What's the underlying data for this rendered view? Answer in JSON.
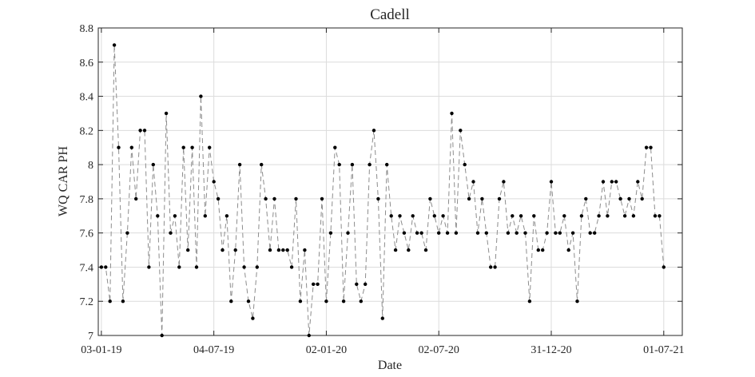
{
  "chart_data": {
    "type": "line",
    "title": "Cadell",
    "xlabel": "Date",
    "ylabel": "WQ CAR PH",
    "ylim": [
      7,
      8.8
    ],
    "xlim": [
      "2018-12-29",
      "2021-07-31"
    ],
    "yticks": [
      7,
      7.2,
      7.4,
      7.6,
      7.8,
      8,
      8.2,
      8.4,
      8.6,
      8.8
    ],
    "ytick_labels": [
      "7",
      "7.2",
      "7.4",
      "7.6",
      "7.8",
      "8",
      "8.2",
      "8.4",
      "8.6",
      "8.8"
    ],
    "xticks": [
      "2019-01-03",
      "2019-07-04",
      "2020-01-02",
      "2020-07-02",
      "2020-12-31",
      "2021-07-01"
    ],
    "xtick_labels": [
      "03-01-19",
      "04-07-19",
      "02-01-20",
      "02-07-20",
      "31-12-20",
      "01-07-21"
    ],
    "grid": true,
    "line_style": "dashed",
    "line_color": "#8c8c8c",
    "marker_color": "#000000",
    "series": [
      {
        "x": [
          "2019-01-03",
          "2019-01-10",
          "2019-01-17",
          "2019-01-24",
          "2019-01-31",
          "2019-02-07",
          "2019-02-14",
          "2019-02-21",
          "2019-02-28",
          "2019-03-07",
          "2019-03-14",
          "2019-03-21",
          "2019-03-28",
          "2019-04-04",
          "2019-04-11",
          "2019-04-18",
          "2019-04-25",
          "2019-05-02",
          "2019-05-09",
          "2019-05-16",
          "2019-05-23",
          "2019-05-30",
          "2019-06-06",
          "2019-06-13",
          "2019-06-20",
          "2019-06-27",
          "2019-07-04",
          "2019-07-11",
          "2019-07-18",
          "2019-07-25",
          "2019-08-01",
          "2019-08-08",
          "2019-08-15",
          "2019-08-22",
          "2019-08-29",
          "2019-09-05",
          "2019-09-12",
          "2019-09-19",
          "2019-09-26",
          "2019-10-03",
          "2019-10-10",
          "2019-10-17",
          "2019-10-24",
          "2019-10-31",
          "2019-11-07",
          "2019-11-14",
          "2019-11-21",
          "2019-11-28",
          "2019-12-05",
          "2019-12-12",
          "2019-12-19",
          "2019-12-26",
          "2020-01-02",
          "2020-01-09",
          "2020-01-16",
          "2020-01-23",
          "2020-01-30",
          "2020-02-06",
          "2020-02-13",
          "2020-02-20",
          "2020-02-27",
          "2020-03-05",
          "2020-03-12",
          "2020-03-19",
          "2020-03-26",
          "2020-04-02",
          "2020-04-09",
          "2020-04-16",
          "2020-04-23",
          "2020-04-30",
          "2020-05-07",
          "2020-05-14",
          "2020-05-21",
          "2020-05-28",
          "2020-06-04",
          "2020-06-11",
          "2020-06-18",
          "2020-06-25",
          "2020-07-02",
          "2020-07-09",
          "2020-07-16",
          "2020-07-23",
          "2020-07-30",
          "2020-08-06",
          "2020-08-13",
          "2020-08-20",
          "2020-08-27",
          "2020-09-03",
          "2020-09-10",
          "2020-09-17",
          "2020-09-24",
          "2020-10-01",
          "2020-10-08",
          "2020-10-15",
          "2020-10-22",
          "2020-10-29",
          "2020-11-05",
          "2020-11-12",
          "2020-11-19",
          "2020-11-26",
          "2020-12-03",
          "2020-12-10",
          "2020-12-17",
          "2020-12-24",
          "2020-12-31",
          "2021-01-07",
          "2021-01-14",
          "2021-01-21",
          "2021-01-28",
          "2021-02-04",
          "2021-02-11",
          "2021-02-18",
          "2021-02-25",
          "2021-03-04",
          "2021-03-11",
          "2021-03-18",
          "2021-03-25",
          "2021-04-01",
          "2021-04-08",
          "2021-04-15",
          "2021-04-22",
          "2021-04-29",
          "2021-05-06",
          "2021-05-13",
          "2021-05-20",
          "2021-05-27",
          "2021-06-03",
          "2021-06-10",
          "2021-06-17",
          "2021-06-24",
          "2021-07-01"
        ],
        "y": [
          7.4,
          7.4,
          7.2,
          8.7,
          8.1,
          7.2,
          7.6,
          8.1,
          7.8,
          8.2,
          8.2,
          7.4,
          8.0,
          7.7,
          7.0,
          8.3,
          7.6,
          7.7,
          7.4,
          8.1,
          7.5,
          8.1,
          7.4,
          8.4,
          7.7,
          8.1,
          7.9,
          7.8,
          7.5,
          7.7,
          7.2,
          7.5,
          8.0,
          7.4,
          7.2,
          7.1,
          7.4,
          8.0,
          7.8,
          7.5,
          7.8,
          7.5,
          7.5,
          7.5,
          7.4,
          7.8,
          7.2,
          7.5,
          7.0,
          7.3,
          7.3,
          7.8,
          7.2,
          7.6,
          8.1,
          8.0,
          7.2,
          7.6,
          8.0,
          7.3,
          7.2,
          7.3,
          8.0,
          8.2,
          7.8,
          7.1,
          8.0,
          7.7,
          7.5,
          7.7,
          7.6,
          7.5,
          7.7,
          7.6,
          7.6,
          7.5,
          7.8,
          7.7,
          7.6,
          7.7,
          7.6,
          8.3,
          7.6,
          8.2,
          8.0,
          7.8,
          7.9,
          7.6,
          7.8,
          7.6,
          7.4,
          7.4,
          7.8,
          7.9,
          7.6,
          7.7,
          7.6,
          7.7,
          7.6,
          7.2,
          7.7,
          7.5,
          7.5,
          7.6,
          7.9,
          7.6,
          7.6,
          7.7,
          7.5,
          7.6,
          7.2,
          7.7,
          7.8,
          7.6,
          7.6,
          7.7,
          7.9,
          7.7,
          7.9,
          7.9,
          7.8,
          7.7,
          7.8,
          7.7,
          7.9,
          7.8,
          8.1,
          8.1,
          7.7,
          7.7,
          7.4
        ]
      }
    ]
  }
}
